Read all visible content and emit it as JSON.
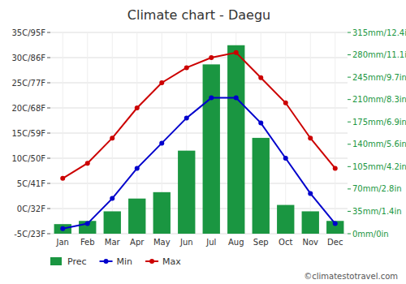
{
  "chart_data": {
    "type": "bar",
    "title": "Climate chart - Daegu",
    "categories": [
      "Jan",
      "Feb",
      "Mar",
      "Apr",
      "May",
      "Jun",
      "Jul",
      "Aug",
      "Sep",
      "Oct",
      "Nov",
      "Dec"
    ],
    "series": [
      {
        "name": "Prec",
        "type": "bar",
        "axis": "y2",
        "color": "#1a9641",
        "values": [
          15,
          20,
          35,
          55,
          65,
          130,
          265,
          295,
          150,
          45,
          35,
          20
        ]
      },
      {
        "name": "Min",
        "type": "line",
        "marker": "circle",
        "color": "#0000cc",
        "values": [
          -4,
          -3,
          2,
          8,
          13,
          18,
          22,
          22,
          17,
          10,
          3,
          -3
        ]
      },
      {
        "name": "Max",
        "type": "line",
        "marker": "circle",
        "color": "#cc0000",
        "values": [
          6,
          9,
          14,
          20,
          25,
          28,
          30,
          31,
          26,
          21,
          14,
          8
        ]
      }
    ],
    "ylim": [
      -5,
      35
    ],
    "yticks": [
      {
        "value": -5,
        "label": "-5C/23F"
      },
      {
        "value": 0,
        "label": "0C/32F"
      },
      {
        "value": 5,
        "label": "5C/41F"
      },
      {
        "value": 10,
        "label": "10C/50F"
      },
      {
        "value": 15,
        "label": "15C/59F"
      },
      {
        "value": 20,
        "label": "20C/68F"
      },
      {
        "value": 25,
        "label": "25C/77F"
      },
      {
        "value": 30,
        "label": "30C/86F"
      },
      {
        "value": 35,
        "label": "35C/95F"
      }
    ],
    "y2lim": [
      0,
      315
    ],
    "y2ticks": [
      {
        "value": 0,
        "label": "0mm/0in"
      },
      {
        "value": 35,
        "label": "35mm/1.4in"
      },
      {
        "value": 70,
        "label": "70mm/2.8in"
      },
      {
        "value": 105,
        "label": "105mm/4.2in"
      },
      {
        "value": 140,
        "label": "140mm/5.6in"
      },
      {
        "value": 175,
        "label": "175mm/6.9in"
      },
      {
        "value": 210,
        "label": "210mm/8.3in"
      },
      {
        "value": 245,
        "label": "245mm/9.7in"
      },
      {
        "value": 280,
        "label": "280mm/11.1in"
      },
      {
        "value": 315,
        "label": "315mm/12.4in"
      }
    ],
    "grid": true,
    "legend": "bottom",
    "annotations": [
      "©climatestotravel.com"
    ]
  }
}
